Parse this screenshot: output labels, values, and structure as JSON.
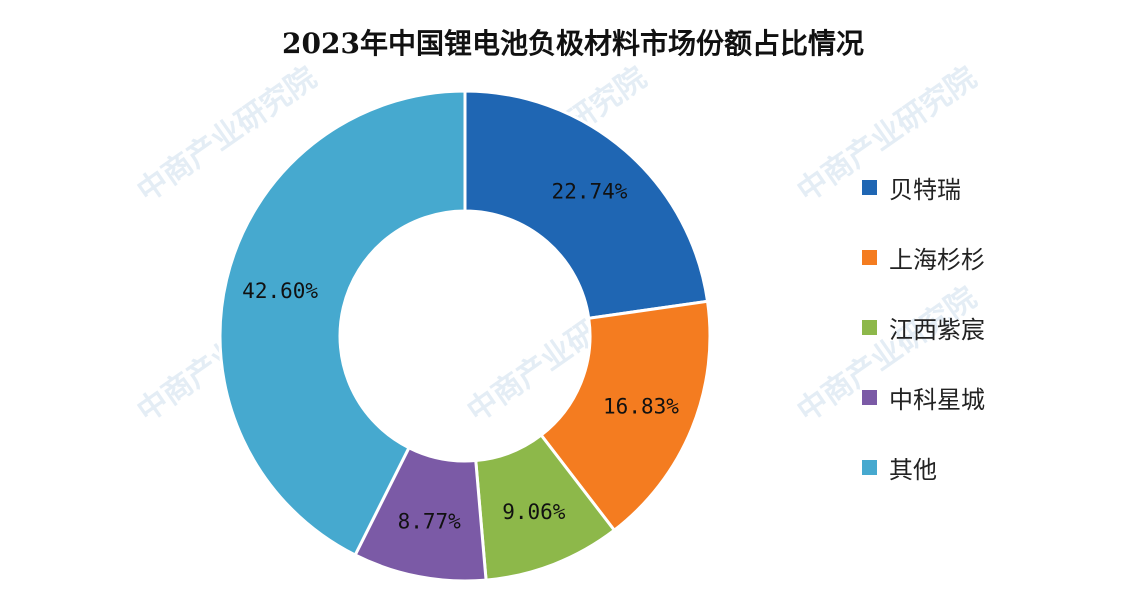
{
  "watermark": "中商产业研究院",
  "chart_data": {
    "type": "pie",
    "donut": true,
    "title": "2023年中国锂电池负极材料市场份额占比情况",
    "legend_position": "right",
    "categories": [
      "贝特瑞",
      "上海杉杉",
      "江西紫宸",
      "中科星城",
      "其他"
    ],
    "values": [
      22.74,
      16.83,
      9.06,
      8.77,
      42.6
    ],
    "labels": [
      "22.74%",
      "16.83%",
      "9.06%",
      "8.77%",
      "42.60%"
    ],
    "colors": [
      "#1f66b3",
      "#f47c20",
      "#8db84a",
      "#7b5aa6",
      "#46a9cf"
    ]
  }
}
